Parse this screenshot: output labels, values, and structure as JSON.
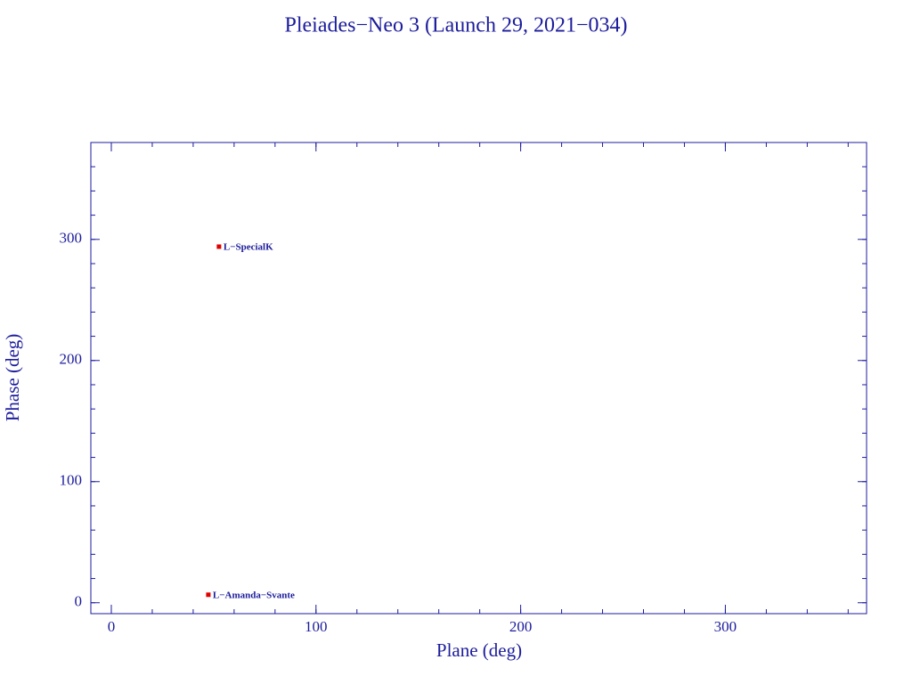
{
  "chart_data": {
    "type": "scatter",
    "title": "Pleiades−Neo 3 (Launch 29, 2021−034)",
    "xlabel": "Plane (deg)",
    "ylabel": "Phase (deg)",
    "x": [
      52.6,
      47.4
    ],
    "values": [
      294,
      6.6
    ],
    "labels": [
      "L−SpecialK",
      "L−Amanda−Svante"
    ],
    "color": "#e00000",
    "xlim": [
      -10,
      369
    ],
    "ylim": [
      -9,
      380
    ],
    "xticks": [
      0,
      100,
      200,
      300
    ],
    "yticks": [
      0,
      100,
      200,
      300
    ]
  }
}
